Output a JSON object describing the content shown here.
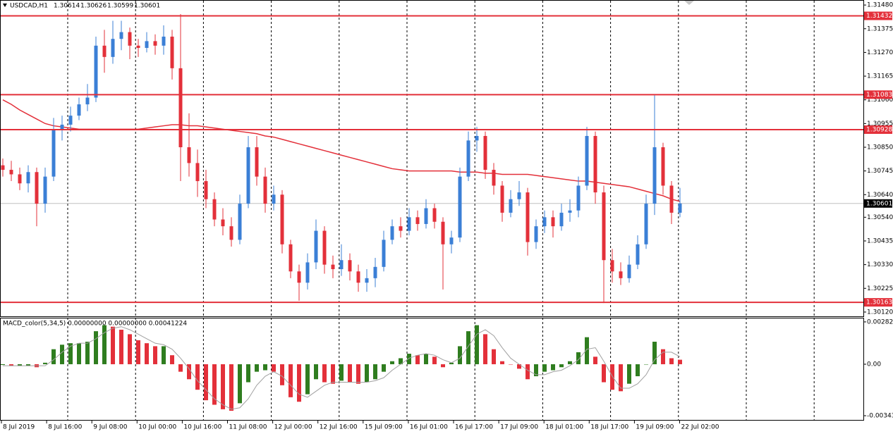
{
  "chart_data": {
    "type": "candlestick",
    "title": "USDCAD,H1",
    "quote": [
      {
        "value": 1.30614,
        "label": "1.30614"
      },
      {
        "value": 1.30626,
        "label": "1.30626"
      },
      {
        "value": 1.30599,
        "label": "1.30599"
      },
      {
        "value": 1.30601,
        "label": "1.30601"
      }
    ],
    "up_color": "#3b7fd6",
    "down_color": "#e3303a",
    "ylim": [
      1.30101,
      1.31496
    ],
    "yticks": [
      {
        "value": 1.3148,
        "label": "1.31480"
      },
      {
        "value": 1.31375,
        "label": "1.31375"
      },
      {
        "value": 1.3127,
        "label": "1.31270"
      },
      {
        "value": 1.31165,
        "label": "1.31165"
      },
      {
        "value": 1.3106,
        "label": "1.31060"
      },
      {
        "value": 1.30955,
        "label": "1.30955"
      },
      {
        "value": 1.3085,
        "label": "1.30850"
      },
      {
        "value": 1.30745,
        "label": "1.30745"
      },
      {
        "value": 1.3064,
        "label": "1.30640"
      },
      {
        "value": 1.3054,
        "label": "1.30540"
      },
      {
        "value": 1.30435,
        "label": "1.30435"
      },
      {
        "value": 1.3033,
        "label": "1.30330"
      },
      {
        "value": 1.30225,
        "label": "1.30225"
      },
      {
        "value": 1.3012,
        "label": "1.30120"
      }
    ],
    "levels": [
      {
        "value": 1.31432,
        "label": "1.31432"
      },
      {
        "value": 1.31083,
        "label": "1.31083"
      },
      {
        "value": 1.30928,
        "label": "1.30928"
      },
      {
        "value": 1.30163,
        "label": "1.30163"
      }
    ],
    "level_color": "#e3303a",
    "bid": {
      "value": 1.30601,
      "label": "1.30601"
    },
    "time_labels": [
      "8 Jul 2019",
      "8 Jul 16:00",
      "9 Jul 08:00",
      "10 Jul 00:00",
      "10 Jul 16:00",
      "11 Jul 08:00",
      "12 Jul 00:00",
      "12 Jul 16:00",
      "15 Jul 09:00",
      "16 Jul 01:00",
      "16 Jul 17:00",
      "17 Jul 09:00",
      "18 Jul 01:00",
      "18 Jul 17:00",
      "19 Jul 09:00",
      "22 Jul 02:00"
    ],
    "candles": [
      [
        1.3077,
        1.308,
        1.3072,
        1.3075
      ],
      [
        1.3075,
        1.3079,
        1.307,
        1.3073
      ],
      [
        1.3073,
        1.3076,
        1.3066,
        1.3069
      ],
      [
        1.3069,
        1.3077,
        1.3065,
        1.3074
      ],
      [
        1.3074,
        1.3076,
        1.305,
        1.306
      ],
      [
        1.306,
        1.3076,
        1.3056,
        1.3072
      ],
      [
        1.3072,
        1.3098,
        1.307,
        1.3093
      ],
      [
        1.3093,
        1.3099,
        1.3088,
        1.3095
      ],
      [
        1.3095,
        1.3103,
        1.3092,
        1.3099
      ],
      [
        1.3099,
        1.3107,
        1.3097,
        1.3104
      ],
      [
        1.3104,
        1.3113,
        1.3101,
        1.3107
      ],
      [
        1.3107,
        1.3134,
        1.3105,
        1.313
      ],
      [
        1.313,
        1.3137,
        1.3118,
        1.3125
      ],
      [
        1.3125,
        1.3141,
        1.3122,
        1.3133
      ],
      [
        1.3133,
        1.3141,
        1.3128,
        1.3136
      ],
      [
        1.3136,
        1.3138,
        1.3124,
        1.313
      ],
      [
        1.313,
        1.3133,
        1.3125,
        1.3129
      ],
      [
        1.3129,
        1.3136,
        1.3127,
        1.3132
      ],
      [
        1.3132,
        1.3135,
        1.3126,
        1.313
      ],
      [
        1.313,
        1.3139,
        1.3126,
        1.3134
      ],
      [
        1.3134,
        1.3137,
        1.3115,
        1.312
      ],
      [
        1.312,
        1.3144,
        1.307,
        1.3085
      ],
      [
        1.3085,
        1.31,
        1.3072,
        1.3078
      ],
      [
        1.3078,
        1.3084,
        1.3063,
        1.307
      ],
      [
        1.307,
        1.3075,
        1.3058,
        1.3062
      ],
      [
        1.3062,
        1.3065,
        1.305,
        1.3053
      ],
      [
        1.3053,
        1.3058,
        1.3046,
        1.305
      ],
      [
        1.305,
        1.3054,
        1.3041,
        1.3044
      ],
      [
        1.3044,
        1.3064,
        1.3042,
        1.306
      ],
      [
        1.306,
        1.309,
        1.3058,
        1.3085
      ],
      [
        1.3085,
        1.309,
        1.3068,
        1.3072
      ],
      [
        1.3072,
        1.3076,
        1.3056,
        1.306
      ],
      [
        1.306,
        1.3068,
        1.3057,
        1.3064
      ],
      [
        1.3064,
        1.3066,
        1.3038,
        1.3042
      ],
      [
        1.3042,
        1.3044,
        1.3027,
        1.303
      ],
      [
        1.303,
        1.3033,
        1.3017,
        1.3025
      ],
      [
        1.3025,
        1.3038,
        1.3022,
        1.3034
      ],
      [
        1.3034,
        1.3053,
        1.3031,
        1.3048
      ],
      [
        1.3048,
        1.305,
        1.3029,
        1.3033
      ],
      [
        1.3033,
        1.3037,
        1.3027,
        1.3031
      ],
      [
        1.3031,
        1.3042,
        1.3028,
        1.3035
      ],
      [
        1.3035,
        1.3038,
        1.3026,
        1.303
      ],
      [
        1.303,
        1.3033,
        1.3021,
        1.3025
      ],
      [
        1.3025,
        1.3031,
        1.3021,
        1.3027
      ],
      [
        1.3027,
        1.3036,
        1.3023,
        1.3032
      ],
      [
        1.3032,
        1.3048,
        1.303,
        1.3044
      ],
      [
        1.3044,
        1.3053,
        1.3042,
        1.305
      ],
      [
        1.305,
        1.3054,
        1.3045,
        1.3048
      ],
      [
        1.3048,
        1.3058,
        1.3046,
        1.3054
      ],
      [
        1.3054,
        1.3057,
        1.3048,
        1.3051
      ],
      [
        1.3051,
        1.3062,
        1.3049,
        1.3058
      ],
      [
        1.3058,
        1.306,
        1.3049,
        1.3052
      ],
      [
        1.3052,
        1.3054,
        1.3022,
        1.3042
      ],
      [
        1.3042,
        1.3048,
        1.3038,
        1.3045
      ],
      [
        1.3045,
        1.3076,
        1.3043,
        1.3072
      ],
      [
        1.3072,
        1.3092,
        1.307,
        1.3088
      ],
      [
        1.3088,
        1.3094,
        1.3083,
        1.309
      ],
      [
        1.309,
        1.3092,
        1.3071,
        1.3075
      ],
      [
        1.3075,
        1.3078,
        1.3064,
        1.3068
      ],
      [
        1.3068,
        1.307,
        1.3052,
        1.3056
      ],
      [
        1.3056,
        1.3066,
        1.3054,
        1.3062
      ],
      [
        1.3062,
        1.307,
        1.3059,
        1.3065
      ],
      [
        1.3065,
        1.3067,
        1.3037,
        1.3043
      ],
      [
        1.3043,
        1.3053,
        1.304,
        1.305
      ],
      [
        1.305,
        1.3057,
        1.3047,
        1.3054
      ],
      [
        1.3054,
        1.3057,
        1.3045,
        1.305
      ],
      [
        1.305,
        1.306,
        1.3048,
        1.3056
      ],
      [
        1.3056,
        1.3062,
        1.3052,
        1.3057
      ],
      [
        1.3057,
        1.3072,
        1.3054,
        1.3068
      ],
      [
        1.3068,
        1.3094,
        1.3066,
        1.309
      ],
      [
        1.309,
        1.3092,
        1.306,
        1.3065
      ],
      [
        1.3065,
        1.3068,
        1.3016,
        1.3035
      ],
      [
        1.3035,
        1.304,
        1.3025,
        1.303
      ],
      [
        1.303,
        1.3034,
        1.3024,
        1.3027
      ],
      [
        1.3027,
        1.3037,
        1.3025,
        1.3033
      ],
      [
        1.3033,
        1.3046,
        1.3031,
        1.3042
      ],
      [
        1.3042,
        1.3064,
        1.304,
        1.306
      ],
      [
        1.306,
        1.3108,
        1.3055,
        1.3085
      ],
      [
        1.3085,
        1.3087,
        1.3064,
        1.3068
      ],
      [
        1.3068,
        1.307,
        1.3051,
        1.3056
      ],
      [
        1.3056,
        1.3067,
        1.3054,
        1.30601
      ]
    ],
    "ma": {
      "color": "#e3303a",
      "values": [
        1.3106,
        1.3104,
        1.31015,
        1.30995,
        1.30975,
        1.30955,
        1.30945,
        1.3094,
        1.30935,
        1.3093,
        1.3093,
        1.3093,
        1.3093,
        1.3093,
        1.3093,
        1.3093,
        1.3093,
        1.30935,
        1.3094,
        1.30945,
        1.3095,
        1.3095,
        1.30945,
        1.30945,
        1.3094,
        1.30935,
        1.3093,
        1.30925,
        1.3092,
        1.30915,
        1.3091,
        1.309,
        1.30895,
        1.30885,
        1.30875,
        1.30865,
        1.30855,
        1.30845,
        1.30835,
        1.30825,
        1.30815,
        1.30805,
        1.30795,
        1.30785,
        1.30775,
        1.30765,
        1.30755,
        1.3075,
        1.30745,
        1.30745,
        1.30745,
        1.30745,
        1.30745,
        1.30745,
        1.3074,
        1.3074,
        1.3074,
        1.30735,
        1.30735,
        1.3073,
        1.3073,
        1.3073,
        1.3073,
        1.30725,
        1.3072,
        1.30715,
        1.3071,
        1.30705,
        1.307,
        1.307,
        1.30695,
        1.3069,
        1.30685,
        1.3068,
        1.30675,
        1.30665,
        1.30655,
        1.30645,
        1.30635,
        1.3062,
        1.3061
      ]
    },
    "indicator": {
      "title": "MACD_color(5,34,5) 0.00000000 0.00000000 0.00041224",
      "ylim": [
        -0.00371,
        0.00305
      ],
      "yticks": [
        {
          "value": 0.00282,
          "label": "0.00282"
        },
        {
          "value": 0,
          "label": "0.00"
        },
        {
          "value": -0.00343,
          "label": "-0.00343"
        }
      ],
      "up_color": "#2f7d1f",
      "down_color": "#e3303a",
      "signal_color": "#a0a0a0",
      "values": [
        -5e-05,
        -0.0001,
        -0.0001,
        -0.0001,
        -0.0002,
        0.0001,
        0.001,
        0.0013,
        0.0014,
        0.0014,
        0.0015,
        0.0022,
        0.0026,
        0.0025,
        0.0023,
        0.002,
        0.0016,
        0.0014,
        0.0012,
        0.0012,
        0.0006,
        -0.0005,
        -0.001,
        -0.0017,
        -0.0024,
        -0.0027,
        -0.003,
        -0.0031,
        -0.0026,
        -0.0012,
        -0.0005,
        -0.0004,
        -0.0005,
        -0.0014,
        -0.0022,
        -0.0025,
        -0.002,
        -0.001,
        -0.0012,
        -0.0013,
        -0.0011,
        -0.0012,
        -0.0013,
        -0.0012,
        -0.001,
        -0.0005,
        0.0002,
        0.0004,
        0.0007,
        0.0006,
        0.0007,
        0.0005,
        -0.0002,
        0.0001,
        0.0012,
        0.0022,
        0.0026,
        0.002,
        0.001,
        0.0002,
        0.0,
        -0.0003,
        -0.001,
        -0.0008,
        -0.0005,
        -0.0004,
        -0.0002,
        0.0002,
        0.0008,
        0.0018,
        0.0005,
        -0.0012,
        -0.0017,
        -0.0018,
        -0.0013,
        -0.0008,
        0.0,
        0.0015,
        0.001,
        0.0004,
        0.0003
      ],
      "signal": [
        -0.0001,
        -0.0001,
        -0.0001,
        -0.0001,
        -0.0001,
        -0.0001,
        0.0003,
        0.0008,
        0.0012,
        0.0014,
        0.0014,
        0.0017,
        0.0021,
        0.0024,
        0.0025,
        0.0023,
        0.002,
        0.0017,
        0.0014,
        0.0013,
        0.001,
        0.0004,
        -0.0003,
        -0.0011,
        -0.0017,
        -0.0023,
        -0.0027,
        -0.003,
        -0.0029,
        -0.0023,
        -0.0014,
        -0.0008,
        -0.0005,
        -0.0008,
        -0.0014,
        -0.002,
        -0.0022,
        -0.0018,
        -0.0014,
        -0.0012,
        -0.0012,
        -0.0012,
        -0.0012,
        -0.0012,
        -0.0011,
        -0.0009,
        -0.0004,
        0.0,
        0.0004,
        0.0006,
        0.0007,
        0.0006,
        0.0003,
        0.0001,
        0.0004,
        0.0012,
        0.002,
        0.0023,
        0.0019,
        0.0011,
        0.0004,
        0.0,
        -0.0004,
        -0.0007,
        -0.0007,
        -0.0005,
        -0.0004,
        -0.0001,
        0.0003,
        0.001,
        0.0011,
        0.0002,
        -0.0008,
        -0.0016,
        -0.0016,
        -0.0013,
        -0.0007,
        0.0003,
        0.0008,
        0.0008,
        0.0005
      ]
    }
  }
}
